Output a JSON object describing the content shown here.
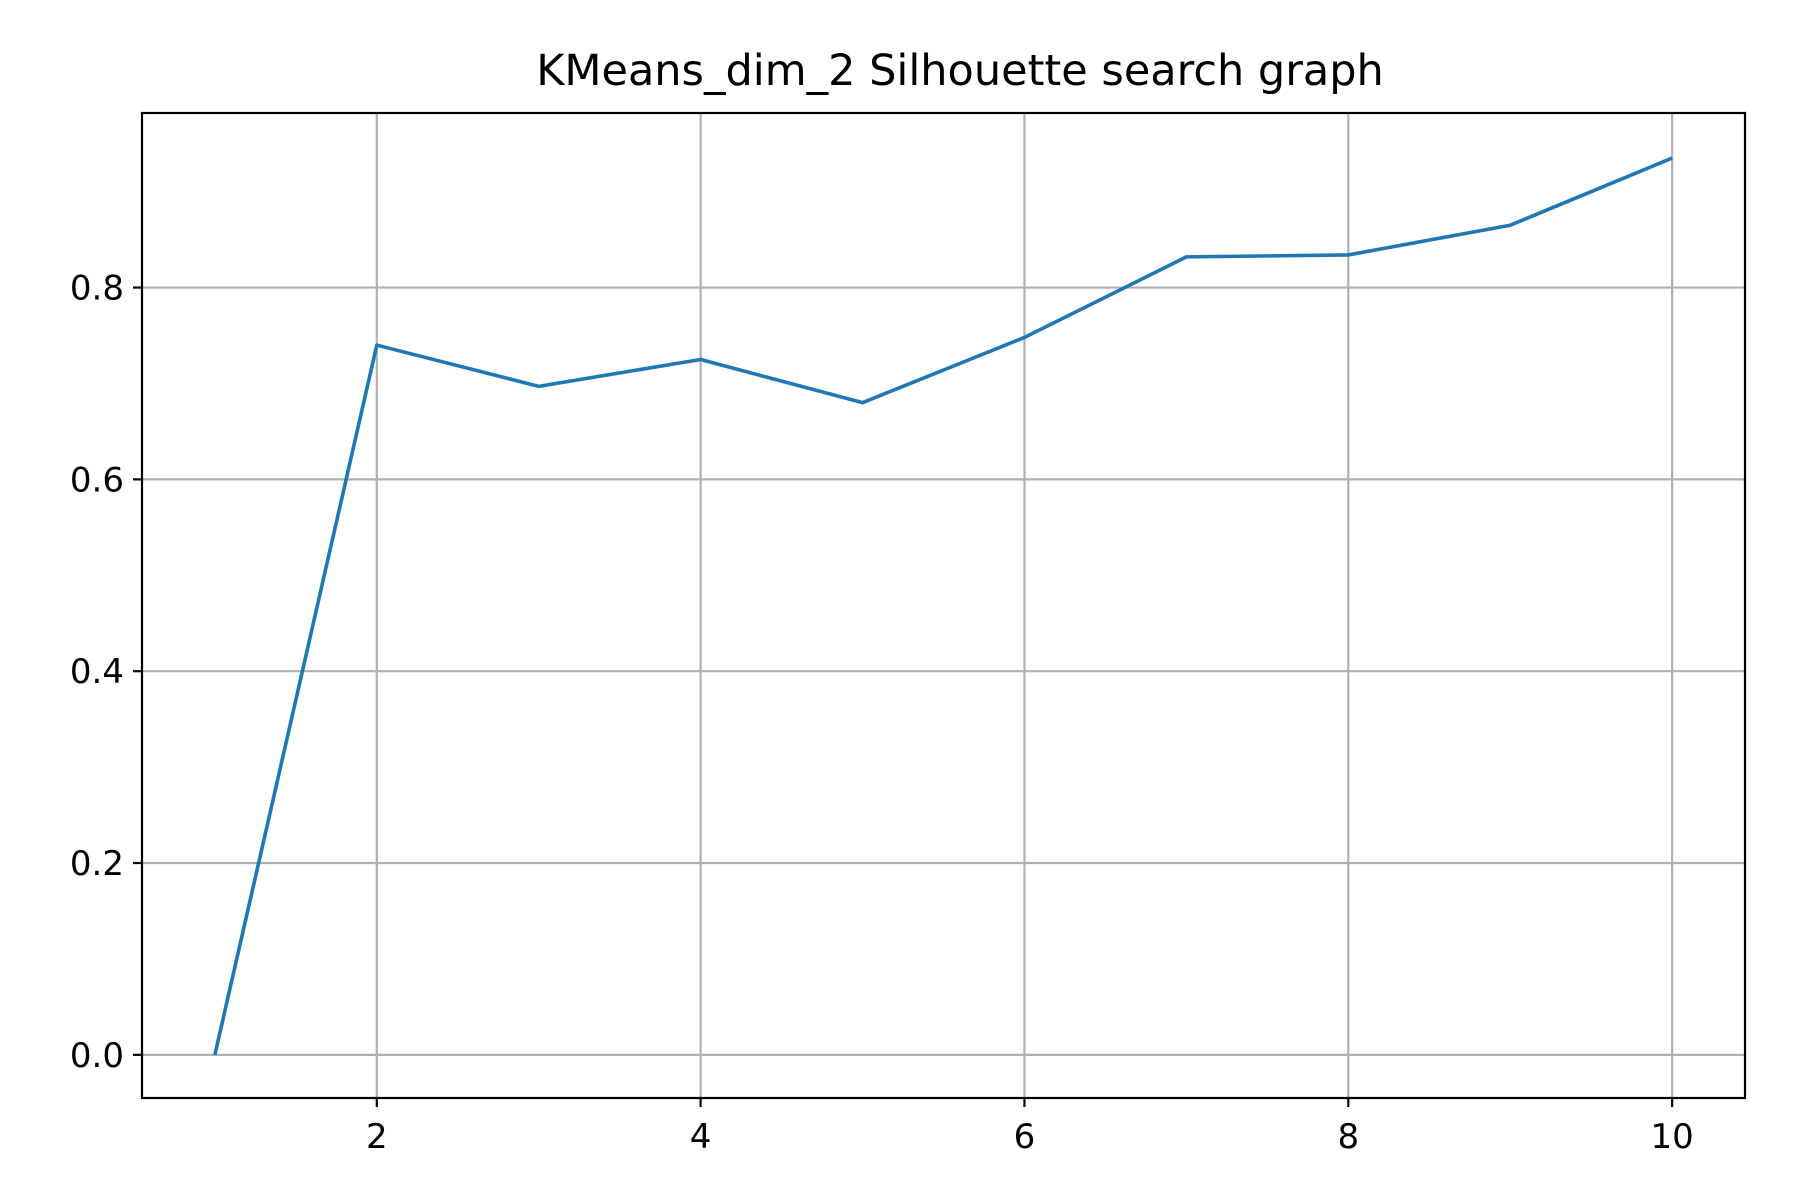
{
  "chart_data": {
    "type": "line",
    "title": "KMeans_dim_2 Silhouette search graph",
    "xlabel": "",
    "ylabel": "",
    "x": [
      1,
      2,
      3,
      4,
      5,
      6,
      7,
      8,
      9,
      10
    ],
    "series": [
      {
        "values": [
          0.0,
          0.74,
          0.697,
          0.725,
          0.68,
          0.748,
          0.832,
          0.834,
          0.865,
          0.935
        ],
        "color": "#1f77b4"
      }
    ],
    "xlim": [
      0.55,
      10.45
    ],
    "ylim": [
      -0.045,
      0.982
    ],
    "xticks": [
      2,
      4,
      6,
      8,
      10
    ],
    "xtick_labels": [
      "2",
      "4",
      "6",
      "8",
      "10"
    ],
    "yticks": [
      0.0,
      0.2,
      0.4,
      0.6,
      0.8
    ],
    "ytick_labels": [
      "0.0",
      "0.2",
      "0.4",
      "0.6",
      "0.8"
    ],
    "grid": true,
    "legend": false
  }
}
